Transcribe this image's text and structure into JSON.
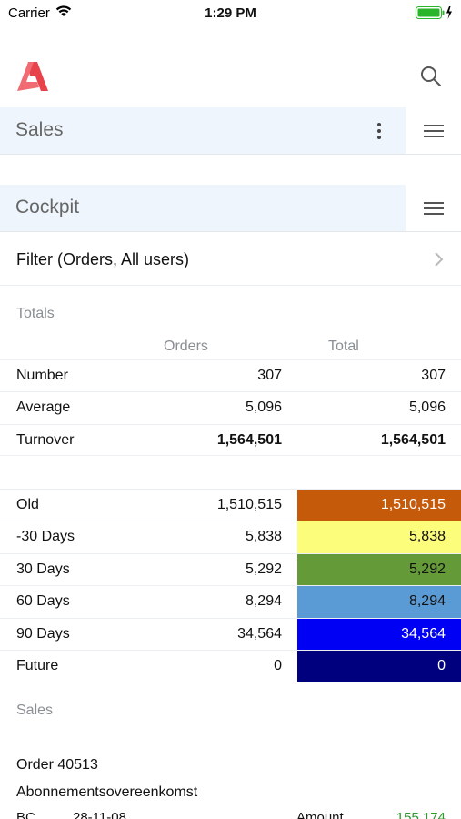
{
  "status_bar": {
    "carrier": "Carrier",
    "time": "1:29 PM"
  },
  "app": {
    "logo_icon": "app-logo-icon",
    "search_icon": "search-icon"
  },
  "sections": [
    {
      "title": "Sales"
    },
    {
      "title": "Cockpit"
    }
  ],
  "filter": {
    "label": "Filter (Orders, All users)"
  },
  "totals": {
    "caption": "Totals",
    "columns": [
      "Orders",
      "Total"
    ],
    "rows": [
      {
        "label": "Number",
        "orders": "307",
        "total": "307"
      },
      {
        "label": "Average",
        "orders": "5,096",
        "total": "5,096"
      },
      {
        "label": "Turnover",
        "orders": "1,564,501",
        "total": "1,564,501"
      }
    ]
  },
  "aging": [
    {
      "label": "Old",
      "orders": "1,510,515",
      "total": "1,510,515",
      "color": "#c55a0a",
      "text_color": "#ffffff"
    },
    {
      "label": "-30 Days",
      "orders": "5,838",
      "total": "5,838",
      "color": "#fdfd7c",
      "text_color": "#111111"
    },
    {
      "label": "30 Days",
      "orders": "5,292",
      "total": "5,292",
      "color": "#649a37",
      "text_color": "#111111"
    },
    {
      "label": "60 Days",
      "orders": "8,294",
      "total": "8,294",
      "color": "#5b9bd5",
      "text_color": "#111111"
    },
    {
      "label": "90 Days",
      "orders": "34,564",
      "total": "34,564",
      "color": "#0000f5",
      "text_color": "#ffffff"
    },
    {
      "label": "Future",
      "orders": "0",
      "total": "0",
      "color": "#00007e",
      "text_color": "#ffffff"
    }
  ],
  "sales": {
    "caption": "Sales",
    "order_title": "Order 40513",
    "order_type": "Abonnementsovereenkomst",
    "code": "BC",
    "date": "28-11-08",
    "amount_label": "Amount",
    "amount_value": "155,174",
    "amount_color": "#2a9a2a"
  }
}
